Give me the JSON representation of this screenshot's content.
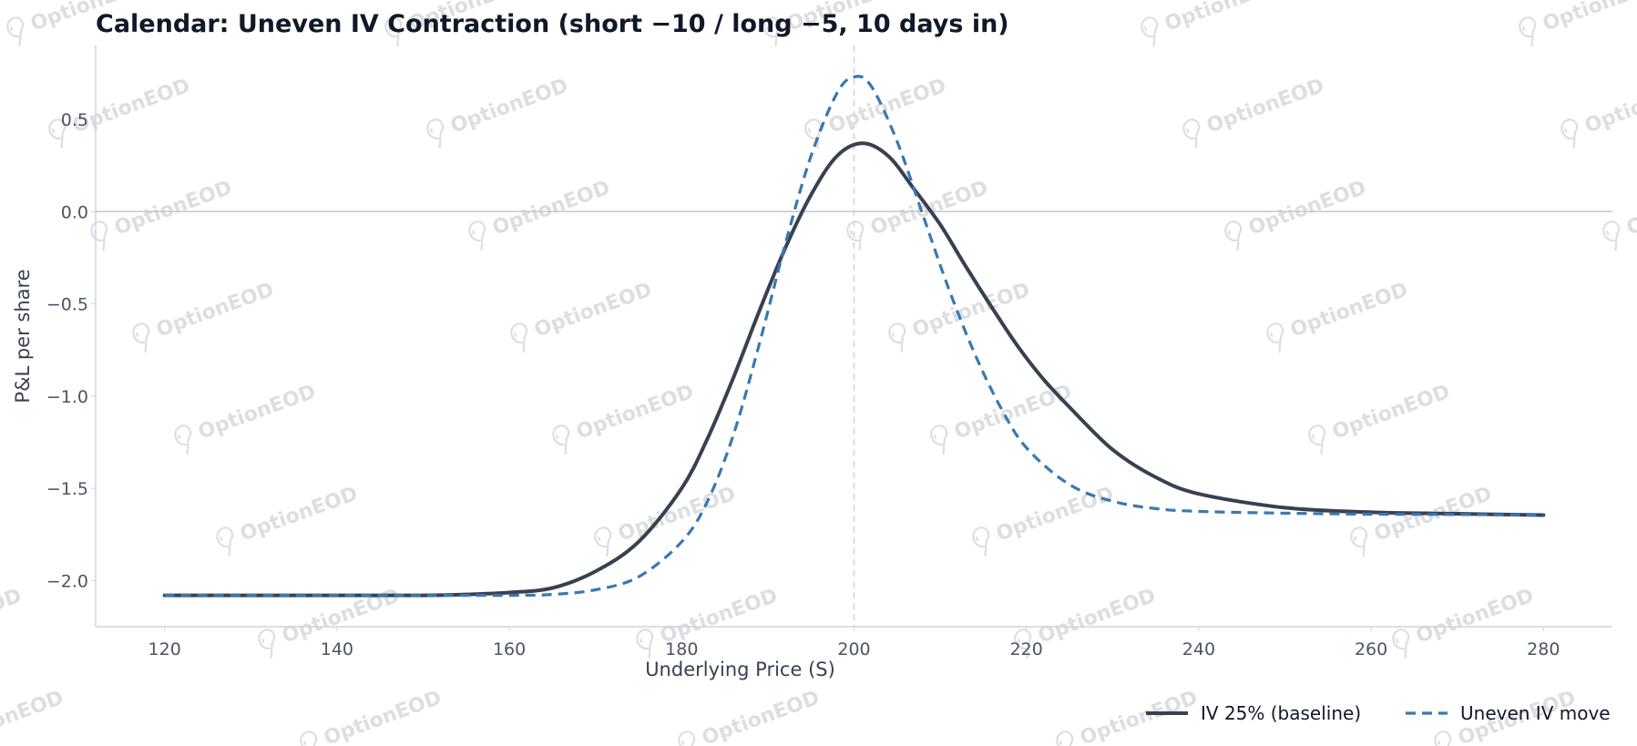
{
  "watermark": {
    "text": "OptionEOD",
    "icon": "drop-pin-icon"
  },
  "chart_data": {
    "type": "line",
    "title": "Calendar: Uneven IV Contraction (short −10 / long −5, 10 days in)",
    "xlabel": "Underlying Price (S)",
    "ylabel": "P&L per share",
    "xlim": [
      112,
      288
    ],
    "ylim": [
      -2.25,
      0.9
    ],
    "xticks": [
      120,
      140,
      160,
      180,
      200,
      220,
      240,
      260,
      280
    ],
    "xtick_labels": [
      "120",
      "140",
      "160",
      "180",
      "200",
      "220",
      "240",
      "260",
      "280"
    ],
    "yticks": [
      -2.0,
      -1.5,
      -1.0,
      -0.5,
      0.0,
      0.5
    ],
    "ytick_labels": [
      "−2.0",
      "−1.5",
      "−1.0",
      "−0.5",
      "0.0",
      "0.5"
    ],
    "reference_lines": {
      "horizontal_y": 0.0,
      "vertical_x": 200
    },
    "grid": false,
    "legend_position": "bottom-right",
    "series": [
      {
        "name": "IV 25% (baseline)",
        "color": "#374151",
        "dash": "solid",
        "x": [
          120,
          130,
          140,
          150,
          155,
          160,
          165,
          170,
          175,
          180,
          183,
          186,
          189,
          192,
          195,
          198,
          201,
          204,
          207,
          210,
          213,
          216,
          219,
          222,
          225,
          230,
          235,
          240,
          250,
          260,
          270,
          280
        ],
        "y": [
          -2.08,
          -2.08,
          -2.08,
          -2.08,
          -2.075,
          -2.065,
          -2.04,
          -1.95,
          -1.79,
          -1.5,
          -1.23,
          -0.9,
          -0.54,
          -0.2,
          0.09,
          0.3,
          0.37,
          0.3,
          0.12,
          -0.07,
          -0.3,
          -0.52,
          -0.73,
          -0.91,
          -1.06,
          -1.29,
          -1.44,
          -1.53,
          -1.605,
          -1.63,
          -1.638,
          -1.645
        ]
      },
      {
        "name": "Uneven IV move",
        "color": "#3a78b0",
        "dash": "dashed",
        "x": [
          120,
          140,
          160,
          165,
          170,
          175,
          180,
          183,
          186,
          189,
          192,
          195,
          198,
          200,
          202,
          205,
          208,
          211,
          214,
          217,
          220,
          225,
          230,
          235,
          240,
          250,
          260,
          270,
          280
        ],
        "y": [
          -2.08,
          -2.08,
          -2.08,
          -2.075,
          -2.05,
          -1.98,
          -1.79,
          -1.57,
          -1.21,
          -0.72,
          -0.18,
          0.3,
          0.64,
          0.73,
          0.68,
          0.38,
          -0.02,
          -0.42,
          -0.77,
          -1.06,
          -1.28,
          -1.48,
          -1.57,
          -1.61,
          -1.625,
          -1.635,
          -1.64,
          -1.642,
          -1.645
        ]
      }
    ]
  }
}
